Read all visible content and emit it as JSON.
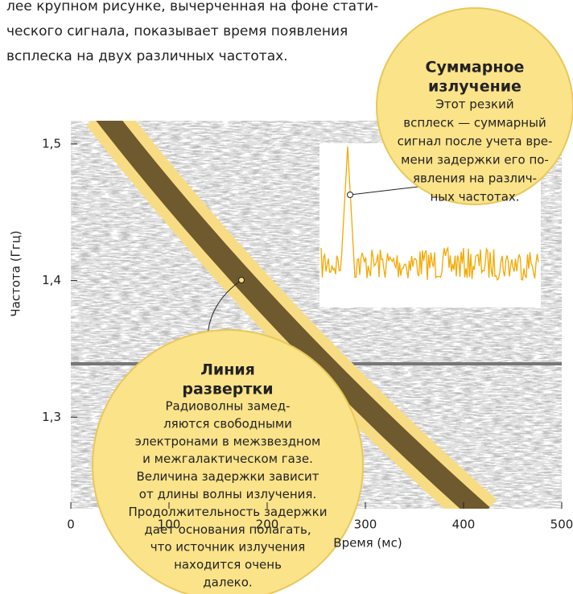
{
  "intro": [
    "лее крупном рисунке, вычерченная на фоне стати-",
    "ческого сигнала, показывает время появления",
    "всплеска на двух различных частотах."
  ],
  "chart_data": {
    "type": "spectrogram",
    "xlabel": "Время (мс)",
    "ylabel": "Частота (Ггц)",
    "xlim": [
      0,
      500
    ],
    "ylim": [
      1.233,
      1.517
    ],
    "xticks": [
      0,
      100,
      200,
      300,
      400,
      500
    ],
    "yticks": [
      {
        "value": 1.3,
        "label": "1,3"
      },
      {
        "value": 1.4,
        "label": "1,4"
      },
      {
        "value": 1.5,
        "label": "1,5"
      }
    ]
  },
  "callouts": [
    {
      "title": [
        "Суммарное",
        "излучение"
      ],
      "body": [
        "Этот резкий",
        "всплеск — суммарный",
        "сигнал после учета вре-",
        "мени задержки его по-",
        "явления на различ-",
        "ных частотах."
      ]
    },
    {
      "title": [
        "Линия",
        "развертки"
      ],
      "body": [
        "Радиоволны замед-",
        "ляются свободными",
        "электронами в межзвездном",
        "и межгалактическом газе.",
        "Величина задержки зависит",
        "от длины волны излучения.",
        "Продолжительность задержки",
        "дает основания полагать,",
        "что источник излучения",
        "находится очень",
        "далеко."
      ]
    }
  ]
}
